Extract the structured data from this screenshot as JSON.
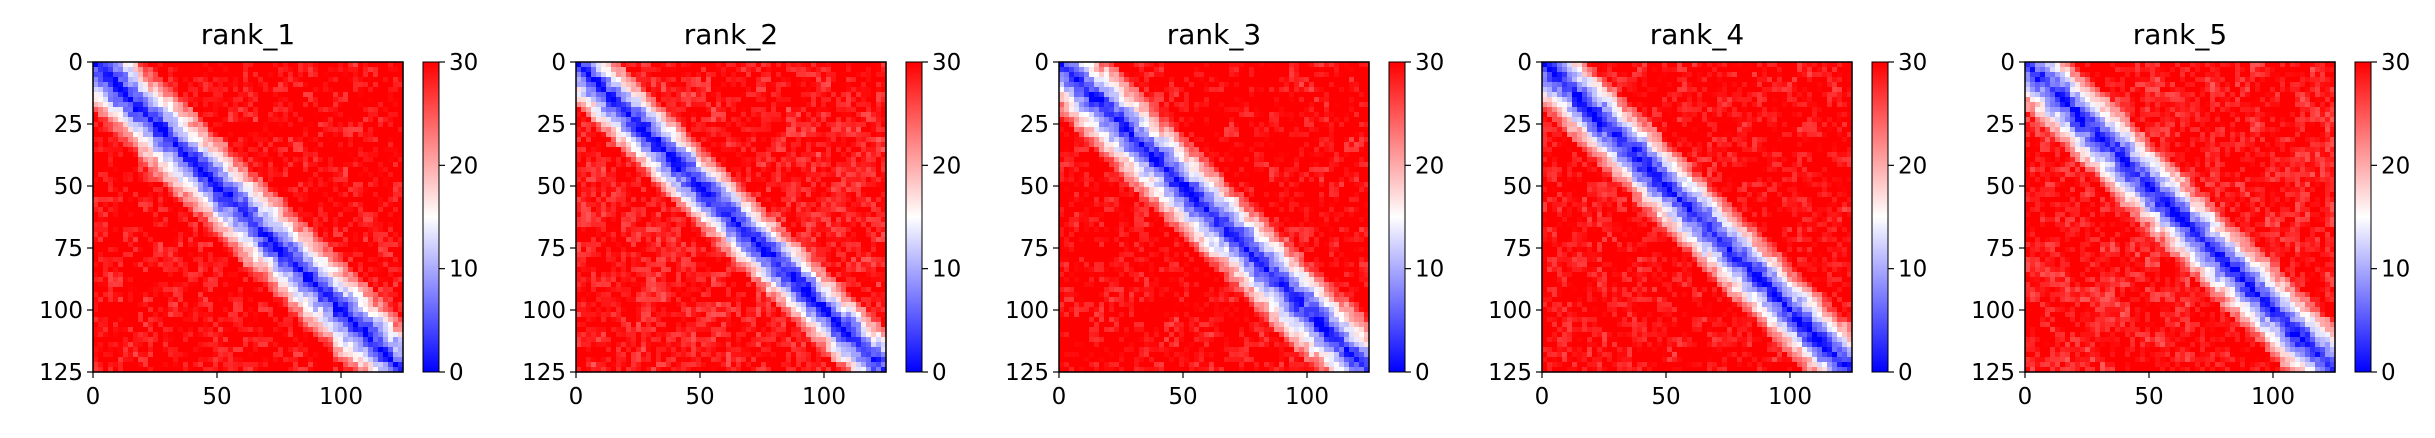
{
  "chart_data": {
    "type": "heatmap",
    "colormap": "bwr",
    "colormap_colors": [
      "#0000ff",
      "#ffffff",
      "#ff0000"
    ],
    "grid": false,
    "axis_range": [
      0,
      125
    ],
    "x_ticks": [
      0,
      50,
      100
    ],
    "y_ticks": [
      0,
      25,
      50,
      75,
      100,
      125
    ],
    "colorbar": {
      "range": [
        0,
        30
      ],
      "ticks": [
        0,
        10,
        20,
        30
      ]
    },
    "panels": [
      {
        "title": "rank_1",
        "band_halfwidth": 5,
        "near_range": 22,
        "far_level": 28
      },
      {
        "title": "rank_2",
        "band_halfwidth": 5,
        "near_range": 18,
        "far_level": 27
      },
      {
        "title": "rank_3",
        "band_halfwidth": 5,
        "near_range": 22,
        "far_level": 28
      },
      {
        "title": "rank_4",
        "band_halfwidth": 5,
        "near_range": 20,
        "far_level": 28
      },
      {
        "title": "rank_5",
        "band_halfwidth": 5,
        "near_range": 20,
        "far_level": 27
      }
    ]
  }
}
